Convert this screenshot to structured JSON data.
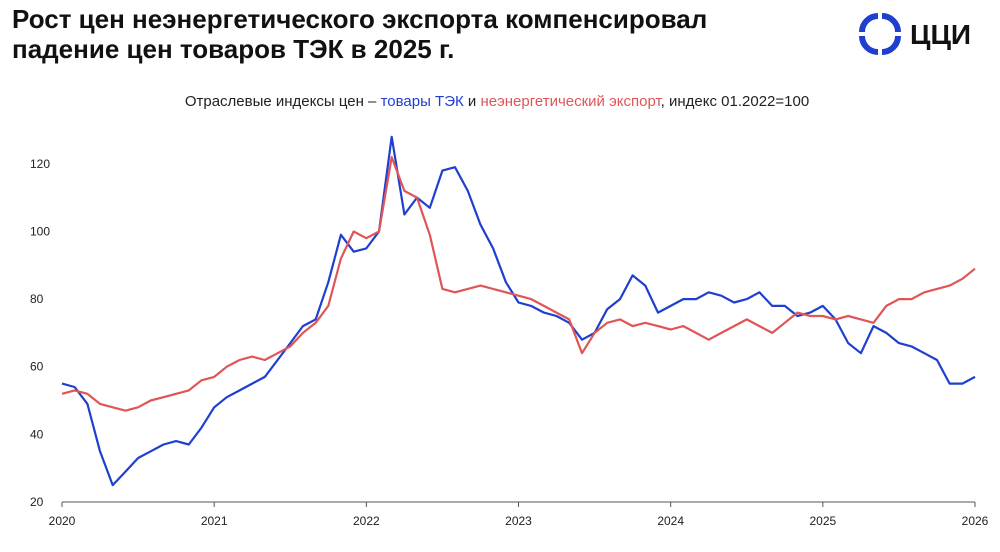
{
  "chart_data": {
    "type": "line",
    "title": [
      "Рост цен неэнергетического экспорта компенсировал",
      "падение цен товаров ТЭК в 2025 г."
    ],
    "subtitle": {
      "prefix": "Отраслевые индексы цен –",
      "middle": "и",
      "suffix": ", индекс 01.2022=100"
    },
    "logo": "ЦЦИ",
    "x": [
      2020,
      2020.083,
      2020.167,
      2020.25,
      2020.333,
      2020.417,
      2020.5,
      2020.583,
      2020.667,
      2020.75,
      2020.833,
      2020.917,
      2021,
      2021.083,
      2021.167,
      2021.25,
      2021.333,
      2021.417,
      2021.5,
      2021.583,
      2021.667,
      2021.75,
      2021.833,
      2021.917,
      2022,
      2022.083,
      2022.167,
      2022.25,
      2022.333,
      2022.417,
      2022.5,
      2022.583,
      2022.667,
      2022.75,
      2022.833,
      2022.917,
      2023,
      2023.083,
      2023.167,
      2023.25,
      2023.333,
      2023.417,
      2023.5,
      2023.583,
      2023.667,
      2023.75,
      2023.833,
      2023.917,
      2024,
      2024.083,
      2024.167,
      2024.25,
      2024.333,
      2024.417,
      2024.5,
      2024.583,
      2024.667,
      2024.75,
      2024.833,
      2024.917,
      2025,
      2025.083,
      2025.167,
      2025.25,
      2025.333,
      2025.417,
      2025.5,
      2025.583,
      2025.667,
      2025.75,
      2025.833,
      2025.917,
      2026
    ],
    "series": [
      {
        "name": "товары ТЭК",
        "color": "#1f3fcf",
        "values": [
          55,
          54,
          49,
          35,
          25,
          29,
          33,
          35,
          37,
          38,
          37,
          42,
          48,
          51,
          53,
          55,
          57,
          62,
          67,
          72,
          74,
          85,
          99,
          94,
          95,
          100,
          128,
          105,
          110,
          107,
          118,
          119,
          112,
          102,
          95,
          85,
          79,
          78,
          76,
          75,
          73,
          68,
          70,
          77,
          80,
          87,
          84,
          76,
          78,
          80,
          80,
          82,
          81,
          79,
          80,
          82,
          78,
          78,
          75,
          76,
          78,
          74,
          67,
          64,
          72,
          70,
          67,
          66,
          64,
          62,
          55,
          55,
          57
        ]
      },
      {
        "name": "неэнергетический экспорт",
        "color": "#e05555",
        "values": [
          52,
          53,
          52,
          49,
          48,
          47,
          48,
          50,
          51,
          52,
          53,
          56,
          57,
          60,
          62,
          63,
          62,
          64,
          66,
          70,
          73,
          78,
          92,
          100,
          98,
          100,
          122,
          112,
          110,
          99,
          83,
          82,
          83,
          84,
          83,
          82,
          81,
          80,
          78,
          76,
          74,
          64,
          70,
          73,
          74,
          72,
          73,
          72,
          71,
          72,
          70,
          68,
          70,
          72,
          74,
          72,
          70,
          73,
          76,
          75,
          75,
          74,
          75,
          74,
          73,
          78,
          80,
          80,
          82,
          83,
          84,
          86,
          89
        ]
      }
    ],
    "xlim": [
      2020,
      2026
    ],
    "xticks": [
      2020,
      2021,
      2022,
      2023,
      2024,
      2025,
      2026
    ],
    "ylim": [
      20,
      130
    ],
    "yticks": [
      20,
      40,
      60,
      80,
      100,
      120
    ],
    "grid": false
  }
}
